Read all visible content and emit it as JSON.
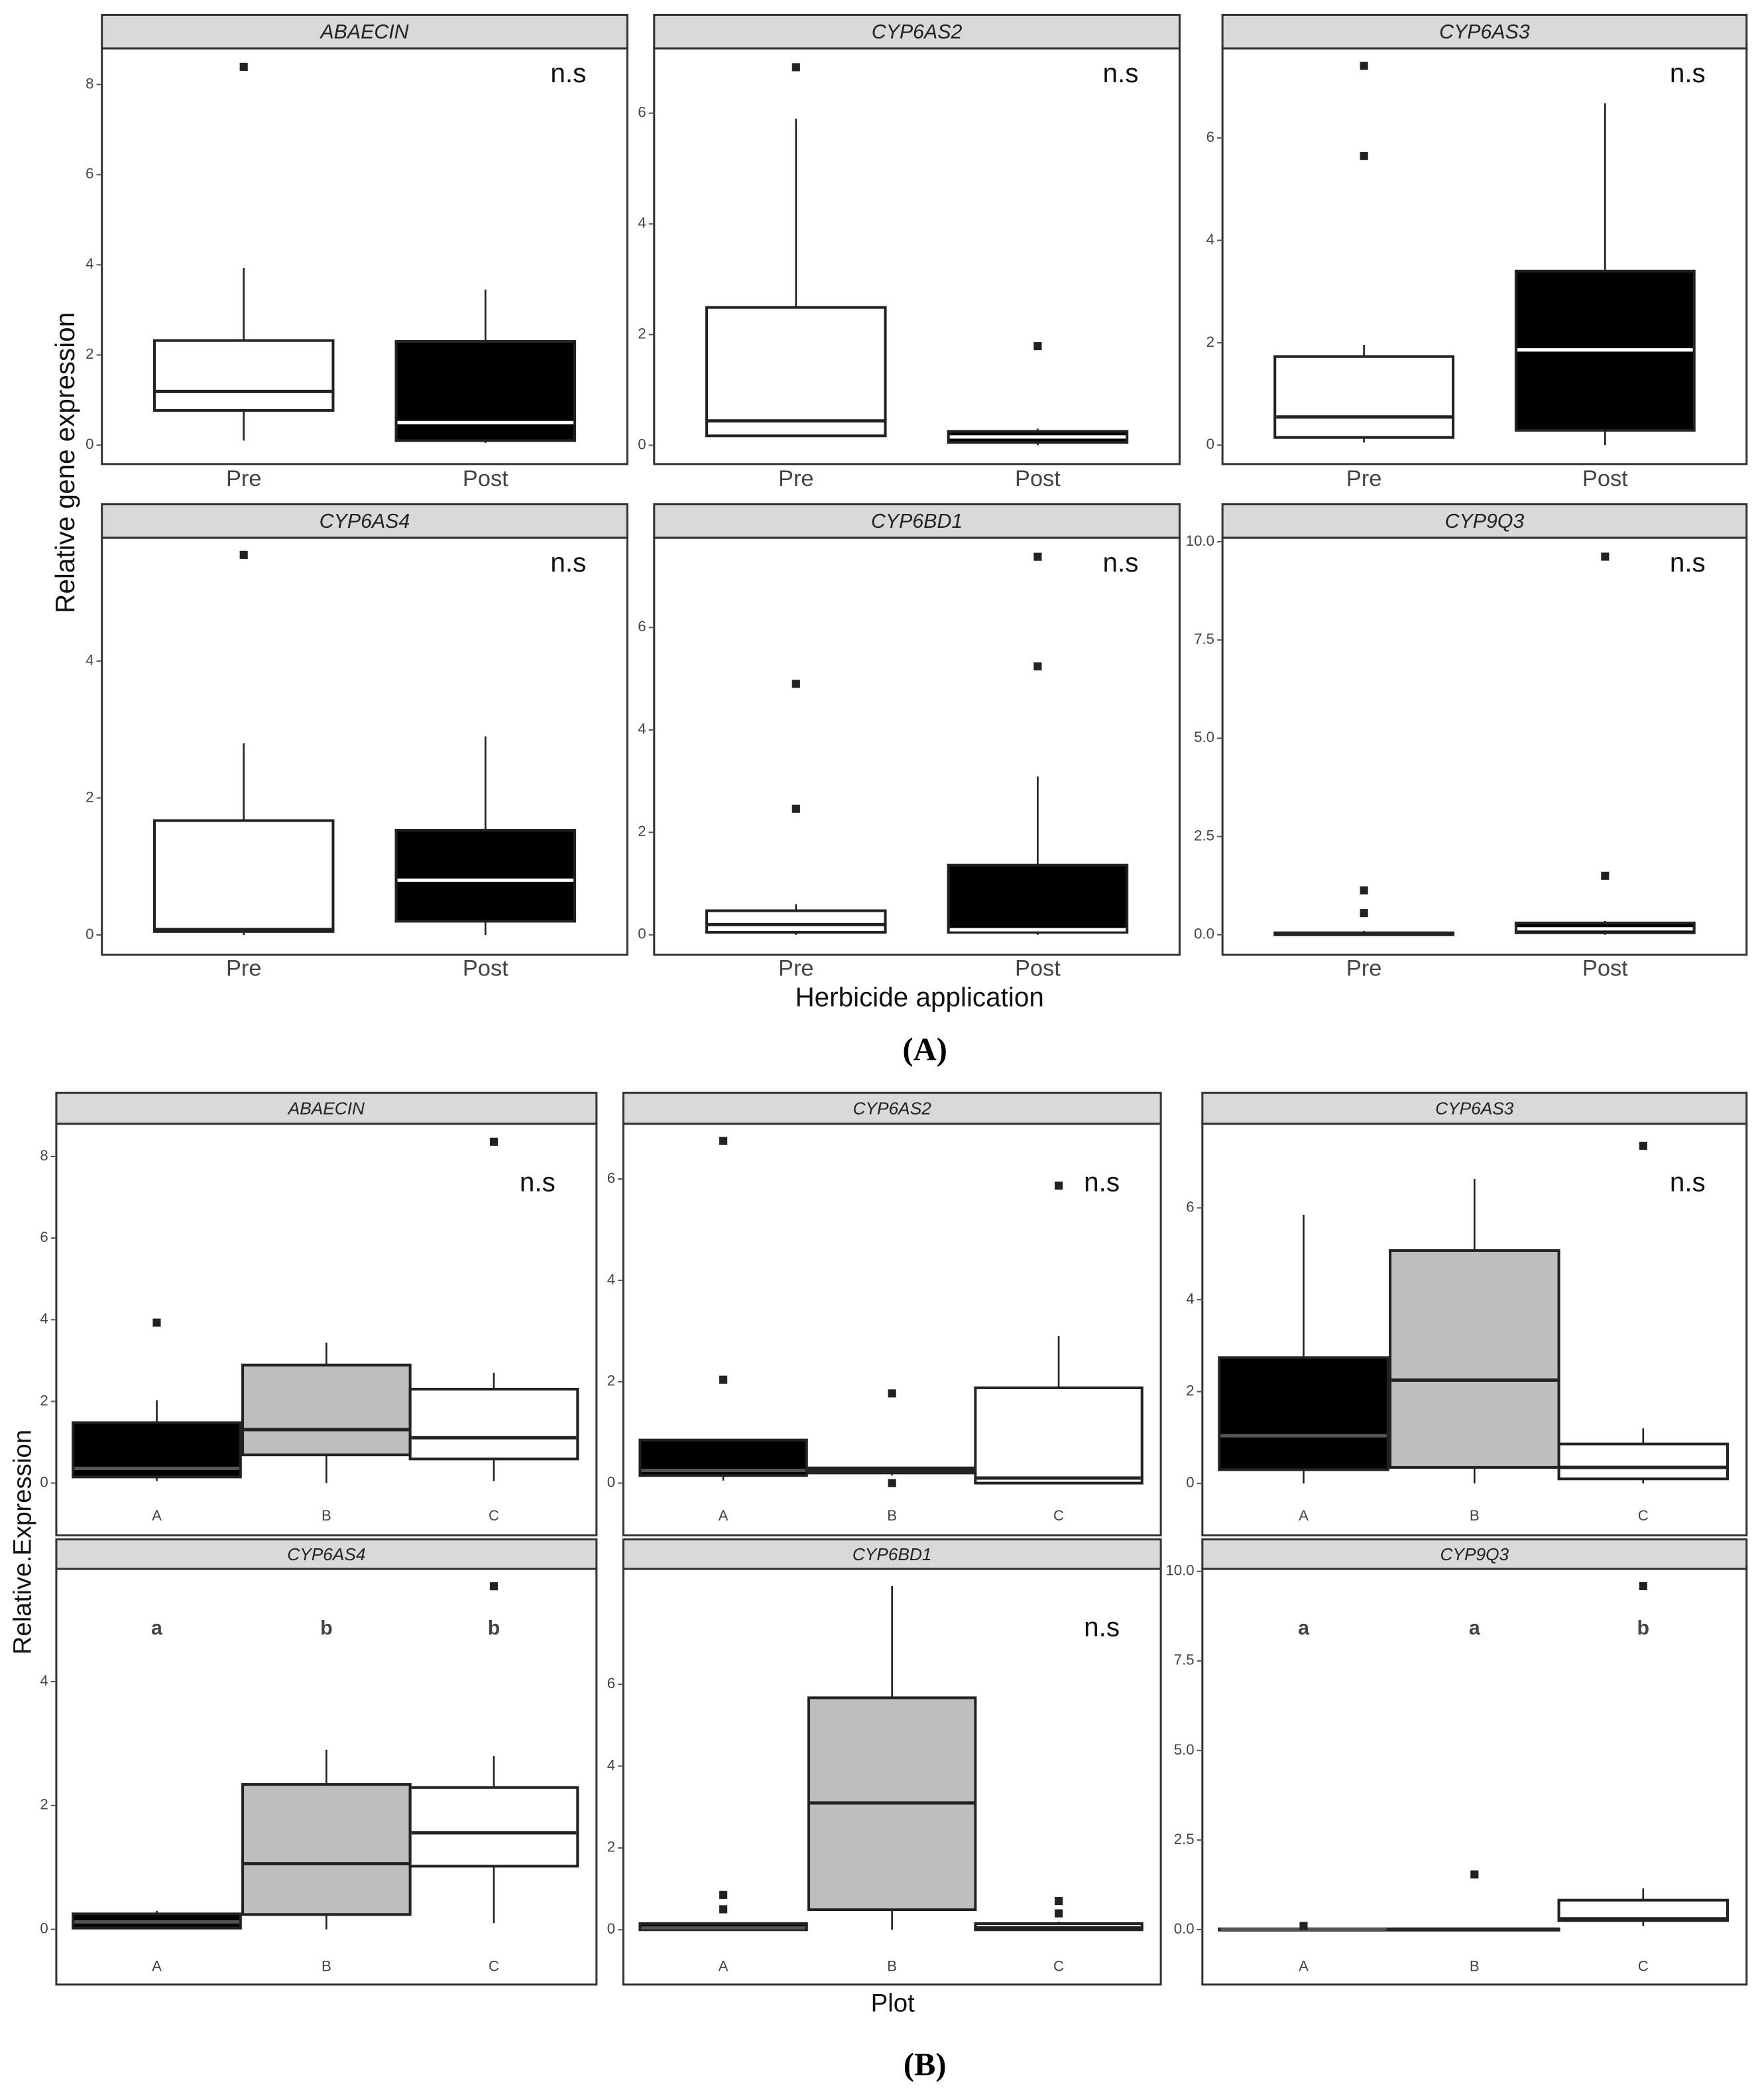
{
  "figure_labels": {
    "a": {
      "label": "(A)",
      "ylabel": "Relative gene expression",
      "xlabel": "Herbicide application"
    },
    "b": {
      "label": "(B)",
      "ylabel": "Relative.Expression",
      "xlabel": "Plot"
    }
  },
  "chart_data": [
    {
      "type": "box",
      "title": "ABAECIN",
      "categories": [
        "Pre",
        "Post"
      ],
      "ylim": [
        -0.42,
        8.8
      ],
      "yticks": [
        0,
        2,
        4,
        6,
        8
      ],
      "annotation": "n.s",
      "boxes": [
        {
          "color": "#ffffff",
          "median_color": "#222222",
          "whislo": 0.1,
          "q1": 0.77,
          "median": 1.19,
          "q3": 2.32,
          "whishi": 3.93,
          "fliers": [
            8.39
          ]
        },
        {
          "color": "#000000",
          "median_color": "#ffffff",
          "whislo": 0.05,
          "q1": 0.1,
          "median": 0.5,
          "q3": 2.3,
          "whishi": 3.45,
          "fliers": []
        }
      ]
    },
    {
      "type": "box",
      "title": "CYP6AS2",
      "categories": [
        "Pre",
        "Post"
      ],
      "ylim": [
        -0.34,
        7.17
      ],
      "yticks": [
        0,
        2,
        4,
        6
      ],
      "annotation": "n.s",
      "boxes": [
        {
          "color": "#ffffff",
          "median_color": "#222222",
          "whislo": 0.15,
          "q1": 0.17,
          "median": 0.44,
          "q3": 2.49,
          "whishi": 5.9,
          "fliers": [
            6.83
          ]
        },
        {
          "color": "#000000",
          "median_color": "#ffffff",
          "whislo": 0.0,
          "q1": 0.05,
          "median": 0.15,
          "q3": 0.25,
          "whishi": 0.3,
          "fliers": [
            1.79
          ]
        }
      ]
    },
    {
      "type": "box",
      "title": "CYP6AS3",
      "categories": [
        "Pre",
        "Post"
      ],
      "ylim": [
        -0.37,
        7.75
      ],
      "yticks": [
        0,
        2,
        4,
        6
      ],
      "annotation": "n.s",
      "boxes": [
        {
          "color": "#ffffff",
          "median_color": "#222222",
          "whislo": 0.05,
          "q1": 0.15,
          "median": 0.55,
          "q3": 1.73,
          "whishi": 1.96,
          "fliers": [
            5.65,
            7.41
          ]
        },
        {
          "color": "#000000",
          "median_color": "#ffffff",
          "whislo": 0.0,
          "q1": 0.29,
          "median": 1.86,
          "q3": 3.4,
          "whishi": 6.68,
          "fliers": []
        }
      ]
    },
    {
      "type": "box",
      "title": "CYP6AS4",
      "categories": [
        "Pre",
        "Post"
      ],
      "ylim": [
        -0.29,
        5.8
      ],
      "yticks": [
        0,
        2,
        4
      ],
      "annotation": "n.s",
      "boxes": [
        {
          "color": "#ffffff",
          "median_color": "#222222",
          "whislo": 0.0,
          "q1": 0.05,
          "median": 0.08,
          "q3": 1.67,
          "whishi": 2.8,
          "fliers": [
            5.55
          ]
        },
        {
          "color": "#000000",
          "median_color": "#ffffff",
          "whislo": 0.0,
          "q1": 0.2,
          "median": 0.8,
          "q3": 1.53,
          "whishi": 2.9,
          "fliers": []
        }
      ]
    },
    {
      "type": "box",
      "title": "CYP6BD1",
      "categories": [
        "Pre",
        "Post"
      ],
      "ylim": [
        -0.39,
        7.75
      ],
      "yticks": [
        0,
        2,
        4,
        6
      ],
      "annotation": "n.s",
      "boxes": [
        {
          "color": "#ffffff",
          "median_color": "#222222",
          "whislo": 0.0,
          "q1": 0.05,
          "median": 0.2,
          "q3": 0.47,
          "whishi": 0.6,
          "fliers": [
            2.46,
            4.9
          ]
        },
        {
          "color": "#000000",
          "median_color": "#ffffff",
          "whislo": 0.0,
          "q1": 0.05,
          "median": 0.1,
          "q3": 1.36,
          "whishi": 3.09,
          "fliers": [
            5.24,
            7.38
          ]
        }
      ]
    },
    {
      "type": "box",
      "title": "CYP9Q3",
      "categories": [
        "Pre",
        "Post"
      ],
      "ylim": [
        -0.51,
        10.1
      ],
      "yticks": [
        {
          "value": 0,
          "label": "0.0"
        },
        {
          "value": 2.5,
          "label": "2.5"
        },
        {
          "value": 5,
          "label": "5.0"
        },
        {
          "value": 7.5,
          "label": "7.5"
        },
        {
          "value": 10,
          "label": "10.0"
        }
      ],
      "annotation": "n.s",
      "boxes": [
        {
          "color": "#ffffff",
          "median_color": "#222222",
          "whislo": 0.0,
          "q1": 0.0,
          "median": 0.02,
          "q3": 0.05,
          "whishi": 0.1,
          "fliers": [
            0.55,
            1.13
          ]
        },
        {
          "color": "#000000",
          "median_color": "#ffffff",
          "whislo": 0.0,
          "q1": 0.05,
          "median": 0.15,
          "q3": 0.3,
          "whishi": 0.35,
          "fliers": [
            1.5,
            9.62
          ]
        }
      ]
    },
    {
      "type": "box",
      "title": "ABAECIN",
      "categories": [
        "A",
        "B",
        "C"
      ],
      "ylim": [
        -0.46,
        8.8
      ],
      "yticks": [
        0,
        2,
        4,
        6,
        8
      ],
      "annotation": "n.s",
      "boxes": [
        {
          "color": "#000000",
          "median_color": "#555555",
          "whislo": 0.05,
          "q1": 0.15,
          "median": 0.36,
          "q3": 1.48,
          "whishi": 2.03,
          "fliers": [
            3.93
          ]
        },
        {
          "color": "#bebebe",
          "median_color": "#222222",
          "whislo": 0.0,
          "q1": 0.69,
          "median": 1.31,
          "q3": 2.89,
          "whishi": 3.44,
          "fliers": []
        },
        {
          "color": "#ffffff",
          "median_color": "#222222",
          "whislo": 0.05,
          "q1": 0.59,
          "median": 1.11,
          "q3": 2.3,
          "whishi": 2.7,
          "fliers": [
            8.36
          ]
        }
      ]
    },
    {
      "type": "box",
      "title": "CYP6AS2",
      "categories": [
        "A",
        "B",
        "C"
      ],
      "ylim": [
        -0.37,
        7.09
      ],
      "yticks": [
        0,
        2,
        4,
        6
      ],
      "annotation": "n.s",
      "boxes": [
        {
          "color": "#000000",
          "median_color": "#555555",
          "whislo": 0.05,
          "q1": 0.15,
          "median": 0.25,
          "q3": 0.85,
          "whishi": 0.85,
          "fliers": [
            2.04,
            6.75
          ]
        },
        {
          "color": "#bebebe",
          "median_color": "#222222",
          "whislo": 0.15,
          "q1": 0.2,
          "median": 0.25,
          "q3": 0.3,
          "whishi": 0.3,
          "fliers": [
            1.77,
            0.0
          ]
        },
        {
          "color": "#ffffff",
          "median_color": "#222222",
          "whislo": 0.0,
          "q1": 0.0,
          "median": 0.1,
          "q3": 1.88,
          "whishi": 2.9,
          "fliers": [
            5.87
          ]
        }
      ]
    },
    {
      "type": "box",
      "title": "CYP6AS3",
      "categories": [
        "A",
        "B",
        "C"
      ],
      "ylim": [
        -0.4,
        7.83
      ],
      "yticks": [
        0,
        2,
        4,
        6
      ],
      "annotation": "n.s",
      "boxes": [
        {
          "color": "#000000",
          "median_color": "#555555",
          "whislo": 0.0,
          "q1": 0.3,
          "median": 1.04,
          "q3": 2.74,
          "whishi": 5.85,
          "fliers": []
        },
        {
          "color": "#bebebe",
          "median_color": "#222222",
          "whislo": 0.0,
          "q1": 0.35,
          "median": 2.25,
          "q3": 5.07,
          "whishi": 6.63,
          "fliers": []
        },
        {
          "color": "#ffffff",
          "median_color": "#222222",
          "whislo": 0.0,
          "q1": 0.1,
          "median": 0.35,
          "q3": 0.86,
          "whishi": 1.2,
          "fliers": [
            7.35
          ]
        }
      ]
    },
    {
      "type": "box",
      "title": "CYP6AS4",
      "categories": [
        "A",
        "B",
        "C"
      ],
      "ylim": [
        -0.35,
        5.82
      ],
      "yticks": [
        0,
        2,
        4
      ],
      "letters": [
        "a",
        "b",
        "b"
      ],
      "boxes": [
        {
          "color": "#000000",
          "median_color": "#555555",
          "whislo": 0.0,
          "q1": 0.02,
          "median": 0.12,
          "q3": 0.25,
          "whishi": 0.3,
          "fliers": []
        },
        {
          "color": "#bebebe",
          "median_color": "#222222",
          "whislo": 0.0,
          "q1": 0.24,
          "median": 1.06,
          "q3": 2.34,
          "whishi": 2.9,
          "fliers": []
        },
        {
          "color": "#ffffff",
          "median_color": "#222222",
          "whislo": 0.1,
          "q1": 1.02,
          "median": 1.56,
          "q3": 2.29,
          "whishi": 2.8,
          "fliers": [
            5.54
          ]
        }
      ]
    },
    {
      "type": "box",
      "title": "CYP6BD1",
      "categories": [
        "A",
        "B",
        "C"
      ],
      "ylim": [
        -0.52,
        8.82
      ],
      "yticks": [
        0,
        2,
        4,
        6
      ],
      "annotation": "n.s",
      "boxes": [
        {
          "color": "#000000",
          "median_color": "#555555",
          "whislo": 0.0,
          "q1": 0.0,
          "median": 0.05,
          "q3": 0.15,
          "whishi": 0.15,
          "fliers": [
            0.5,
            0.85
          ]
        },
        {
          "color": "#bebebe",
          "median_color": "#222222",
          "whislo": 0.0,
          "q1": 0.49,
          "median": 3.1,
          "q3": 5.67,
          "whishi": 8.4,
          "fliers": []
        },
        {
          "color": "#ffffff",
          "median_color": "#222222",
          "whislo": 0.0,
          "q1": 0.0,
          "median": 0.05,
          "q3": 0.15,
          "whishi": 0.2,
          "fliers": [
            0.4,
            0.7
          ]
        }
      ]
    },
    {
      "type": "box",
      "title": "CYP9Q3",
      "categories": [
        "A",
        "B",
        "C"
      ],
      "ylim": [
        -0.6,
        10.07
      ],
      "yticks": [
        {
          "value": 0,
          "label": "0.0"
        },
        {
          "value": 2.5,
          "label": "2.5"
        },
        {
          "value": 5,
          "label": "5.0"
        },
        {
          "value": 7.5,
          "label": "7.5"
        },
        {
          "value": 10,
          "label": "10.0"
        }
      ],
      "letters": [
        "a",
        "a",
        "b"
      ],
      "boxes": [
        {
          "color": "#000000",
          "median_color": "#555555",
          "whislo": 0.0,
          "q1": 0.0,
          "median": 0.01,
          "q3": 0.02,
          "whishi": 0.05,
          "fliers": [
            0.1
          ]
        },
        {
          "color": "#bebebe",
          "median_color": "#222222",
          "whislo": 0.0,
          "q1": 0.0,
          "median": 0.01,
          "q3": 0.02,
          "whishi": 0.05,
          "fliers": [
            1.54
          ]
        },
        {
          "color": "#ffffff",
          "median_color": "#222222",
          "whislo": 0.1,
          "q1": 0.25,
          "median": 0.3,
          "q3": 0.82,
          "whishi": 1.15,
          "fliers": [
            9.59
          ]
        }
      ]
    }
  ]
}
